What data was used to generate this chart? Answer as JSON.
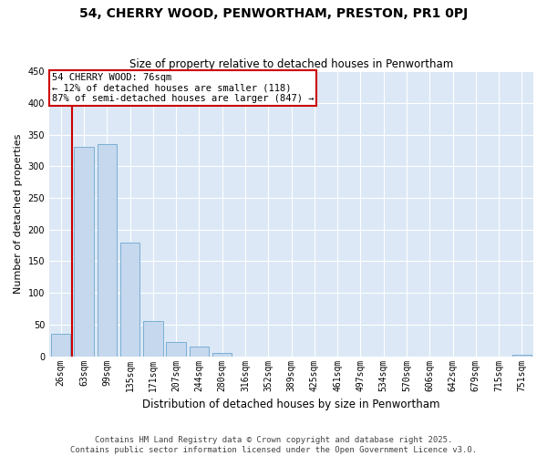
{
  "title": "54, CHERRY WOOD, PENWORTHAM, PRESTON, PR1 0PJ",
  "subtitle": "Size of property relative to detached houses in Penwortham",
  "xlabel": "Distribution of detached houses by size in Penwortham",
  "ylabel": "Number of detached properties",
  "bar_labels": [
    "26sqm",
    "63sqm",
    "99sqm",
    "135sqm",
    "171sqm",
    "207sqm",
    "244sqm",
    "280sqm",
    "316sqm",
    "352sqm",
    "389sqm",
    "425sqm",
    "461sqm",
    "497sqm",
    "534sqm",
    "570sqm",
    "606sqm",
    "642sqm",
    "679sqm",
    "715sqm",
    "751sqm"
  ],
  "bar_values": [
    35,
    330,
    335,
    180,
    55,
    23,
    15,
    5,
    0,
    0,
    0,
    0,
    0,
    0,
    0,
    0,
    0,
    0,
    0,
    0,
    2
  ],
  "bar_color": "#c5d8ee",
  "bar_edge_color": "#7aafd4",
  "property_line_x": 0.5,
  "property_line_label": "54 CHERRY WOOD: 76sqm",
  "annotation_line1": "← 12% of detached houses are smaller (118)",
  "annotation_line2": "87% of semi-detached houses are larger (847) →",
  "annotation_box_color": "#ffffff",
  "annotation_box_edge_color": "#cc0000",
  "property_line_color": "#cc0000",
  "ylim": [
    0,
    450
  ],
  "yticks": [
    0,
    50,
    100,
    150,
    200,
    250,
    300,
    350,
    400,
    450
  ],
  "footer_line1": "Contains HM Land Registry data © Crown copyright and database right 2025.",
  "footer_line2": "Contains public sector information licensed under the Open Government Licence v3.0.",
  "bg_color": "#ffffff",
  "plot_bg_color": "#dce8f5",
  "grid_color": "#ffffff",
  "title_fontsize": 10,
  "subtitle_fontsize": 8.5,
  "ylabel_fontsize": 8,
  "xlabel_fontsize": 8.5,
  "tick_fontsize": 7,
  "annotation_fontsize": 7.5,
  "footer_fontsize": 6.5
}
